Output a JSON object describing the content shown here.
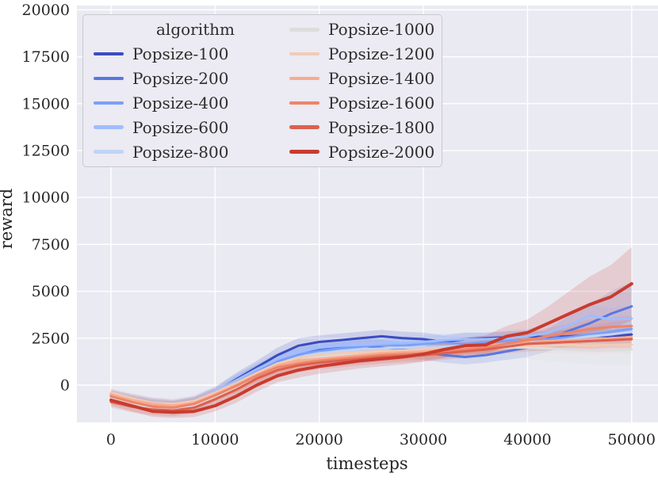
{
  "style": {
    "figure_bg": "#ffffff",
    "axes_bg": "#eaeaf2",
    "grid_color": "#ffffff",
    "text_color": "#262626",
    "legend_bg": "#eceaf2",
    "legend_border": "#c9c9d2",
    "band_opacity": 0.17
  },
  "chart_data": {
    "type": "line",
    "title": "",
    "xlabel": "timesteps",
    "ylabel": "reward",
    "legend_title": "algorithm",
    "legend_position": "upper left",
    "grid": true,
    "xlim": [
      -3270,
      52530
    ],
    "ylim": [
      -1985,
      20230
    ],
    "x_ticks": [
      0,
      10000,
      20000,
      30000,
      40000,
      50000
    ],
    "y_ticks": [
      0,
      2500,
      5000,
      7500,
      10000,
      12500,
      15000,
      17500,
      20000
    ],
    "x": [
      0,
      2000,
      4000,
      6000,
      8000,
      10000,
      12000,
      14000,
      16000,
      18000,
      20000,
      22000,
      24000,
      26000,
      28000,
      30000,
      32000,
      34000,
      36000,
      38000,
      40000,
      42000,
      44000,
      46000,
      48000,
      50000
    ],
    "series": [
      {
        "name": "Popsize-100",
        "color": "#3b4cc0",
        "linewidth": 3,
        "values": [
          -500,
          -800,
          -1000,
          -1100,
          -900,
          -400,
          300,
          950,
          1600,
          2100,
          2300,
          2400,
          2500,
          2600,
          2500,
          2450,
          2300,
          2450,
          2500,
          2550,
          2600,
          2550,
          2600,
          2650,
          2600,
          2700
        ],
        "spread": [
          250,
          300,
          300,
          300,
          300,
          300,
          350,
          350,
          400,
          400,
          350,
          350,
          350,
          350,
          350,
          350,
          350,
          350,
          300,
          300,
          300,
          300,
          350,
          350,
          400,
          450
        ]
      },
      {
        "name": "Popsize-200",
        "color": "#5977e3",
        "linewidth": 3,
        "values": [
          -600,
          -900,
          -1100,
          -1200,
          -1000,
          -500,
          100,
          700,
          1200,
          1600,
          1900,
          2000,
          2100,
          2000,
          1900,
          1750,
          1600,
          1500,
          1600,
          1800,
          2000,
          2400,
          2900,
          3300,
          3800,
          4200
        ],
        "spread": [
          250,
          300,
          300,
          350,
          350,
          350,
          400,
          400,
          400,
          400,
          400,
          400,
          400,
          400,
          400,
          400,
          400,
          400,
          400,
          450,
          500,
          600,
          800,
          1000,
          1200,
          1300
        ]
      },
      {
        "name": "Popsize-400",
        "color": "#7b9ff9",
        "linewidth": 3,
        "values": [
          -550,
          -850,
          -1050,
          -1150,
          -950,
          -450,
          200,
          800,
          1300,
          1650,
          1800,
          1950,
          2050,
          2150,
          2100,
          2200,
          2250,
          2200,
          2300,
          2350,
          2400,
          2450,
          2550,
          2700,
          2850,
          3000
        ],
        "spread": [
          250,
          300,
          300,
          300,
          300,
          300,
          350,
          350,
          350,
          350,
          350,
          350,
          350,
          350,
          350,
          350,
          350,
          350,
          350,
          350,
          400,
          400,
          450,
          450,
          500,
          500
        ]
      },
      {
        "name": "Popsize-600",
        "color": "#9ebeff",
        "linewidth": 3,
        "values": [
          -450,
          -750,
          -950,
          -1050,
          -850,
          -350,
          250,
          850,
          1400,
          1750,
          2000,
          2100,
          2150,
          2200,
          2250,
          2300,
          2400,
          2450,
          2450,
          2500,
          2600,
          2800,
          3200,
          3700,
          3500,
          3550
        ],
        "spread": [
          250,
          300,
          300,
          300,
          300,
          300,
          350,
          350,
          350,
          350,
          350,
          350,
          350,
          350,
          350,
          350,
          350,
          350,
          350,
          400,
          400,
          450,
          500,
          550,
          600,
          650
        ]
      },
      {
        "name": "Popsize-800",
        "color": "#c0d4f5",
        "linewidth": 3,
        "values": [
          -650,
          -950,
          -1150,
          -1250,
          -1050,
          -550,
          50,
          650,
          1150,
          1500,
          1700,
          1800,
          1900,
          1950,
          2000,
          2000,
          2050,
          2100,
          2100,
          2150,
          2200,
          2300,
          2450,
          2600,
          2700,
          2850
        ],
        "spread": [
          250,
          300,
          300,
          300,
          300,
          300,
          350,
          350,
          350,
          350,
          350,
          350,
          350,
          350,
          350,
          350,
          350,
          350,
          350,
          350,
          400,
          400,
          450,
          450,
          500,
          500
        ]
      },
      {
        "name": "Popsize-1000",
        "color": "#dddcdc",
        "linewidth": 3,
        "values": [
          -700,
          -1000,
          -1200,
          -1300,
          -1100,
          -650,
          -100,
          500,
          1000,
          1300,
          1500,
          1600,
          1700,
          1750,
          1800,
          1800,
          1850,
          1900,
          1950,
          2000,
          2000,
          1950,
          1900,
          1850,
          1850,
          1900
        ],
        "spread": [
          300,
          350,
          350,
          350,
          350,
          350,
          400,
          400,
          400,
          400,
          450,
          450,
          450,
          450,
          450,
          450,
          450,
          500,
          500,
          550,
          600,
          650,
          700,
          750,
          800,
          850
        ]
      },
      {
        "name": "Popsize-1200",
        "color": "#f2cbb7",
        "linewidth": 3,
        "values": [
          -400,
          -700,
          -950,
          -1000,
          -850,
          -400,
          100,
          650,
          1150,
          1450,
          1600,
          1700,
          1750,
          1800,
          1850,
          1900,
          1950,
          2000,
          2050,
          2050,
          2100,
          2100,
          2150,
          2100,
          2150,
          2150
        ],
        "spread": [
          250,
          300,
          300,
          300,
          300,
          300,
          350,
          350,
          350,
          350,
          350,
          350,
          350,
          350,
          350,
          350,
          350,
          350,
          350,
          350,
          400,
          400,
          400,
          450,
          450,
          500
        ]
      },
      {
        "name": "Popsize-1400",
        "color": "#f7ac8e",
        "linewidth": 3,
        "values": [
          -500,
          -800,
          -1000,
          -1100,
          -950,
          -500,
          0,
          550,
          1050,
          1300,
          1400,
          1500,
          1600,
          1700,
          1750,
          1800,
          1900,
          2000,
          2100,
          2200,
          2300,
          2350,
          2400,
          2400,
          2500,
          2550
        ],
        "spread": [
          250,
          300,
          300,
          300,
          300,
          300,
          350,
          350,
          350,
          350,
          350,
          350,
          350,
          350,
          350,
          350,
          350,
          350,
          350,
          350,
          400,
          400,
          400,
          450,
          450,
          500
        ]
      },
      {
        "name": "Popsize-1600",
        "color": "#ee8468",
        "linewidth": 3,
        "values": [
          -600,
          -900,
          -1150,
          -1200,
          -1000,
          -550,
          -50,
          500,
          950,
          1150,
          1300,
          1400,
          1500,
          1600,
          1650,
          1700,
          1800,
          1900,
          2000,
          2200,
          2400,
          2600,
          2800,
          3000,
          3100,
          3150
        ],
        "spread": [
          250,
          300,
          300,
          300,
          300,
          300,
          350,
          350,
          350,
          350,
          350,
          350,
          350,
          350,
          350,
          350,
          350,
          350,
          400,
          400,
          400,
          450,
          450,
          500,
          500,
          550
        ]
      },
      {
        "name": "Popsize-1800",
        "color": "#dd604f",
        "linewidth": 3,
        "values": [
          -900,
          -1150,
          -1300,
          -1350,
          -1200,
          -750,
          -250,
          350,
          800,
          1050,
          1200,
          1300,
          1400,
          1500,
          1550,
          1600,
          1700,
          1800,
          1900,
          2050,
          2200,
          2250,
          2300,
          2350,
          2400,
          2450
        ],
        "spread": [
          300,
          300,
          300,
          300,
          300,
          300,
          350,
          350,
          350,
          350,
          350,
          350,
          350,
          350,
          350,
          350,
          350,
          350,
          350,
          350,
          400,
          400,
          400,
          450,
          450,
          500
        ]
      },
      {
        "name": "Popsize-2000",
        "color": "#c93b2f",
        "linewidth": 4,
        "values": [
          -800,
          -1100,
          -1400,
          -1450,
          -1400,
          -1100,
          -600,
          0,
          500,
          800,
          1000,
          1150,
          1300,
          1400,
          1500,
          1650,
          1900,
          2100,
          2150,
          2600,
          2800,
          3300,
          3800,
          4300,
          4700,
          5400
        ],
        "spread": [
          300,
          300,
          300,
          300,
          300,
          300,
          350,
          350,
          350,
          400,
          400,
          400,
          400,
          400,
          400,
          400,
          450,
          450,
          500,
          550,
          700,
          900,
          1200,
          1500,
          1700,
          1950
        ]
      }
    ]
  }
}
